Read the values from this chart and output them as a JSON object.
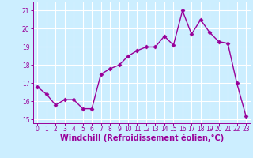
{
  "x": [
    0,
    1,
    2,
    3,
    4,
    5,
    6,
    7,
    8,
    9,
    10,
    11,
    12,
    13,
    14,
    15,
    16,
    17,
    18,
    19,
    20,
    21,
    22,
    23
  ],
  "y": [
    16.8,
    16.4,
    15.8,
    16.1,
    16.1,
    15.6,
    15.6,
    17.5,
    17.8,
    18.0,
    18.5,
    18.8,
    19.0,
    19.0,
    19.6,
    19.1,
    21.0,
    19.7,
    20.5,
    19.8,
    19.3,
    19.2,
    17.0,
    15.2
  ],
  "line_color": "#990099",
  "marker": "D",
  "marker_size": 2.5,
  "background_color": "#cceeff",
  "grid_color": "#ffffff",
  "xlabel": "Windchill (Refroidissement éolien,°C)",
  "ylim": [
    14.8,
    21.5
  ],
  "xlim": [
    -0.5,
    23.5
  ],
  "yticks": [
    15,
    16,
    17,
    18,
    19,
    20,
    21
  ],
  "xticks": [
    0,
    1,
    2,
    3,
    4,
    5,
    6,
    7,
    8,
    9,
    10,
    11,
    12,
    13,
    14,
    15,
    16,
    17,
    18,
    19,
    20,
    21,
    22,
    23
  ],
  "tick_color": "#990099",
  "label_color": "#990099",
  "tick_fontsize": 5.5,
  "xlabel_fontsize": 7.0,
  "linewidth": 1.0
}
